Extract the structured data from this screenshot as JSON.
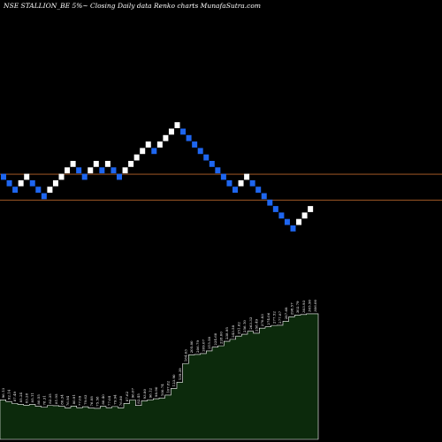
{
  "chart_data": {
    "type": "renko",
    "title": "NSE STALLION_BE 5%~  Closing Daily data  Renko  charts MunafaSutra.com",
    "colors": {
      "background": "#000000",
      "up_brick": "#ffffff",
      "down_brick": "#1e66f0",
      "reference_line": "#b8652a",
      "volume_fill": "#0c2a0c",
      "volume_edge": "#ffffff",
      "label": "#ffffff"
    },
    "bricks": [
      {
        "level": 0,
        "dir": "down"
      },
      {
        "level": -1,
        "dir": "down"
      },
      {
        "level": -2,
        "dir": "down"
      },
      {
        "level": -1,
        "dir": "up"
      },
      {
        "level": 0,
        "dir": "up"
      },
      {
        "level": -1,
        "dir": "down"
      },
      {
        "level": -2,
        "dir": "down"
      },
      {
        "level": -3,
        "dir": "down"
      },
      {
        "level": -2,
        "dir": "up"
      },
      {
        "level": -1,
        "dir": "up"
      },
      {
        "level": 0,
        "dir": "up"
      },
      {
        "level": 1,
        "dir": "up"
      },
      {
        "level": 2,
        "dir": "up"
      },
      {
        "level": 1,
        "dir": "down"
      },
      {
        "level": 0,
        "dir": "down"
      },
      {
        "level": 1,
        "dir": "up"
      },
      {
        "level": 2,
        "dir": "up"
      },
      {
        "level": 1,
        "dir": "down"
      },
      {
        "level": 2,
        "dir": "up"
      },
      {
        "level": 1,
        "dir": "down"
      },
      {
        "level": 0,
        "dir": "down"
      },
      {
        "level": 1,
        "dir": "up"
      },
      {
        "level": 2,
        "dir": "up"
      },
      {
        "level": 3,
        "dir": "up"
      },
      {
        "level": 4,
        "dir": "up"
      },
      {
        "level": 5,
        "dir": "up"
      },
      {
        "level": 4,
        "dir": "down"
      },
      {
        "level": 5,
        "dir": "up"
      },
      {
        "level": 6,
        "dir": "up"
      },
      {
        "level": 7,
        "dir": "up"
      },
      {
        "level": 8,
        "dir": "up"
      },
      {
        "level": 7,
        "dir": "down"
      },
      {
        "level": 6,
        "dir": "down"
      },
      {
        "level": 5,
        "dir": "down"
      },
      {
        "level": 4,
        "dir": "down"
      },
      {
        "level": 3,
        "dir": "down"
      },
      {
        "level": 2,
        "dir": "down"
      },
      {
        "level": 1,
        "dir": "down"
      },
      {
        "level": 0,
        "dir": "down"
      },
      {
        "level": -1,
        "dir": "down"
      },
      {
        "level": -2,
        "dir": "down"
      },
      {
        "level": -1,
        "dir": "up"
      },
      {
        "level": 0,
        "dir": "up"
      },
      {
        "level": -1,
        "dir": "down"
      },
      {
        "level": -2,
        "dir": "down"
      },
      {
        "level": -3,
        "dir": "down"
      },
      {
        "level": -4,
        "dir": "down"
      },
      {
        "level": -5,
        "dir": "down"
      },
      {
        "level": -6,
        "dir": "down"
      },
      {
        "level": -7,
        "dir": "down"
      },
      {
        "level": -8,
        "dir": "down"
      },
      {
        "level": -7,
        "dir": "up"
      },
      {
        "level": -6,
        "dir": "up"
      },
      {
        "level": -5,
        "dir": "up"
      }
    ],
    "reference_lines": [
      {
        "level": 0.4
      },
      {
        "level": -3.6
      }
    ],
    "volume_labels": [
      "96.13",
      "92.14",
      "87.49",
      "85.24",
      "83.28",
      "85.11",
      "80.55",
      "78.31",
      "82.35",
      "81.95",
      "80.34",
      "76.94",
      "80.91",
      "77.09",
      "79.63",
      "76.08",
      "75.58",
      "80.40",
      "77.04",
      "79.94",
      "76.80",
      "87.62",
      "96.07",
      "82.45",
      "93.80",
      "96.12",
      "98.90",
      "100.74",
      "107.82",
      "123.90",
      "139.39",
      "184.63",
      "205.80",
      "206.79",
      "209.07",
      "215.58",
      "224.60",
      "228.00",
      "238.95",
      "243.58",
      "251.62",
      "256.10",
      "263.33",
      "258.49",
      "270.83",
      "274.06",
      "277.52",
      "277.87",
      "287.68",
      "298.57",
      "302.79",
      "303.93",
      "305.90",
      "306.00"
    ]
  }
}
